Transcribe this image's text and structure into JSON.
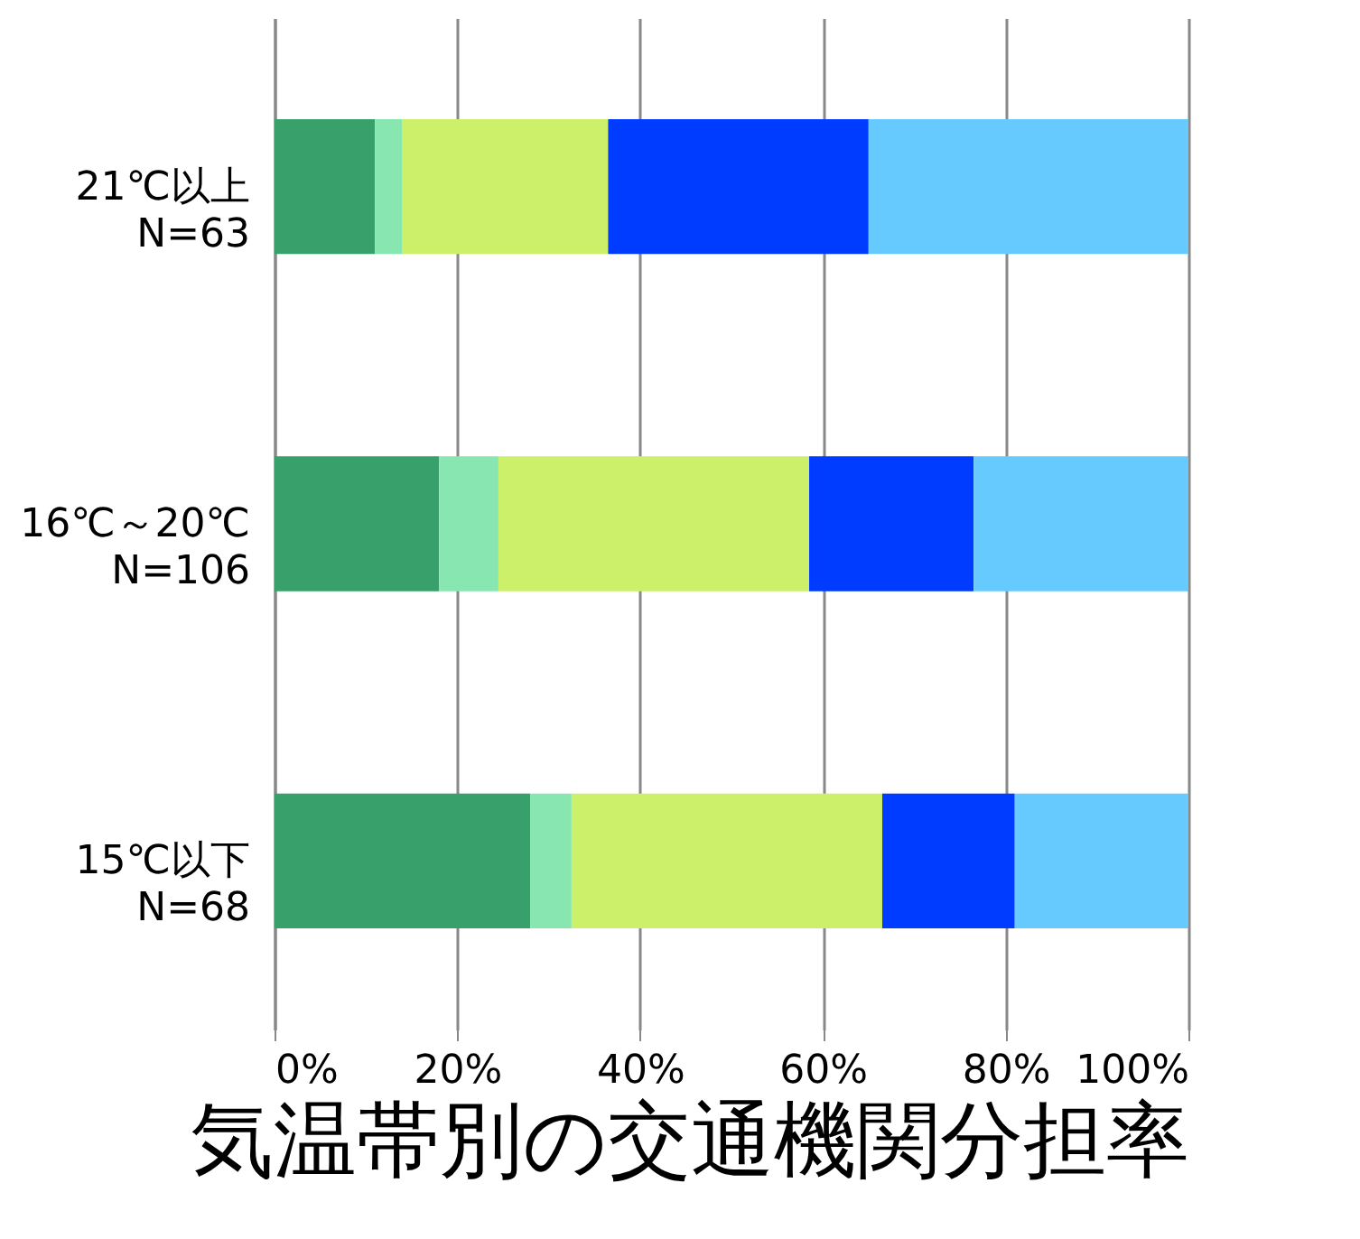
{
  "chart_data": {
    "type": "bar",
    "orientation": "horizontal",
    "stacked": true,
    "title": "気温帯別の交通機関分担率",
    "categories": [
      "21℃以上\nN=63",
      "16℃～20℃\nN=106",
      "15℃以下\nN=68"
    ],
    "series": [
      {
        "color": "#37a06b",
        "values": [
          11,
          18,
          28
        ]
      },
      {
        "color": "#88e6b0",
        "values": [
          3,
          6.5,
          4.5
        ]
      },
      {
        "color": "#ccf06a",
        "values": [
          22.5,
          34,
          34
        ]
      },
      {
        "color": "#003cff",
        "values": [
          28.5,
          18,
          14.5
        ]
      },
      {
        "color": "#66caff",
        "values": [
          35,
          23.5,
          19
        ]
      }
    ],
    "xlim": [
      0,
      100
    ],
    "xticks": [
      {
        "value": 0,
        "label": "0%"
      },
      {
        "value": 20,
        "label": "20%"
      },
      {
        "value": 40,
        "label": "40%"
      },
      {
        "value": 60,
        "label": "60%"
      },
      {
        "value": 80,
        "label": "80%"
      },
      {
        "value": 100,
        "label": "100%"
      }
    ],
    "grid": "x",
    "legend": false
  }
}
